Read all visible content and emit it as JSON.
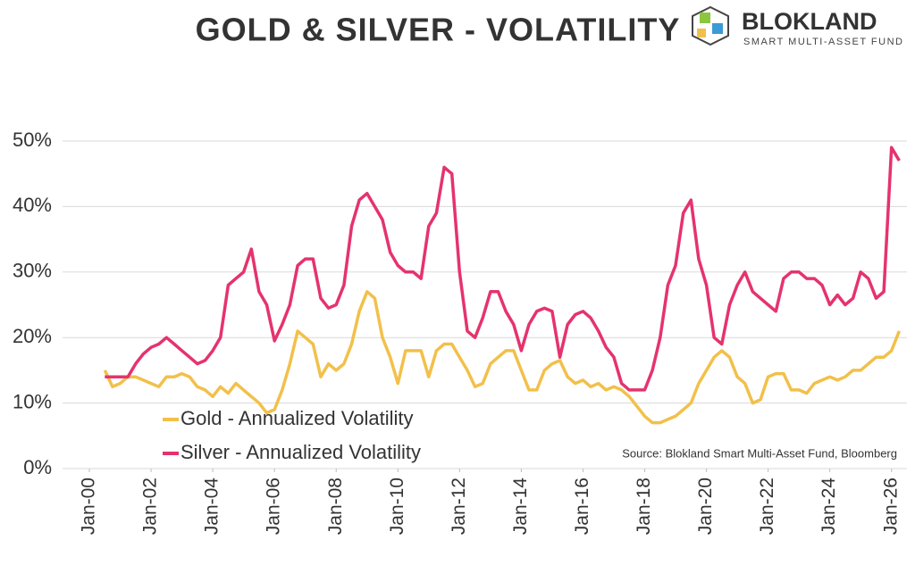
{
  "chart_data": {
    "type": "line",
    "title": "GOLD & SILVER - VOLATILITY",
    "source": "Source: Blokland Smart Multi-Asset Fund, Bloomberg",
    "logo": {
      "name": "BLOKLAND",
      "tagline": "SMART MULTI-ASSET FUND"
    },
    "x": [
      "2000-07",
      "2000-10",
      "2001-01",
      "2001-04",
      "2001-07",
      "2001-10",
      "2002-01",
      "2002-04",
      "2002-07",
      "2002-10",
      "2003-01",
      "2003-04",
      "2003-07",
      "2003-10",
      "2004-01",
      "2004-04",
      "2004-07",
      "2004-10",
      "2005-01",
      "2005-04",
      "2005-07",
      "2005-10",
      "2006-01",
      "2006-04",
      "2006-07",
      "2006-10",
      "2007-01",
      "2007-04",
      "2007-07",
      "2007-10",
      "2008-01",
      "2008-04",
      "2008-07",
      "2008-10",
      "2009-01",
      "2009-04",
      "2009-07",
      "2009-10",
      "2010-01",
      "2010-04",
      "2010-07",
      "2010-10",
      "2011-01",
      "2011-04",
      "2011-07",
      "2011-10",
      "2012-01",
      "2012-04",
      "2012-07",
      "2012-10",
      "2013-01",
      "2013-04",
      "2013-07",
      "2013-10",
      "2014-01",
      "2014-04",
      "2014-07",
      "2014-10",
      "2015-01",
      "2015-04",
      "2015-07",
      "2015-10",
      "2016-01",
      "2016-04",
      "2016-07",
      "2016-10",
      "2017-01",
      "2017-04",
      "2017-07",
      "2017-10",
      "2018-01",
      "2018-04",
      "2018-07",
      "2018-10",
      "2019-01",
      "2019-04",
      "2019-07",
      "2019-10",
      "2020-01",
      "2020-04",
      "2020-07",
      "2020-10",
      "2021-01",
      "2021-04",
      "2021-07",
      "2021-10",
      "2022-01",
      "2022-04",
      "2022-07",
      "2022-10",
      "2023-01",
      "2023-04",
      "2023-07",
      "2023-10",
      "2024-01",
      "2024-04",
      "2024-07",
      "2024-10",
      "2025-01",
      "2025-04",
      "2025-07",
      "2025-10",
      "2026-01",
      "2026-04"
    ],
    "series": [
      {
        "name": "Gold - Annualized Volatility",
        "color": "#f2c04a",
        "values": [
          15,
          12.5,
          13,
          14,
          14,
          13.5,
          13,
          12.5,
          14,
          14,
          14.5,
          14,
          12.5,
          12,
          11,
          12.5,
          11.5,
          13,
          12,
          11,
          10,
          8.5,
          9,
          12,
          16,
          21,
          20,
          19,
          14,
          16,
          15,
          16,
          19,
          24,
          27,
          26,
          20,
          17,
          13,
          18,
          18,
          18,
          14,
          18,
          19,
          19,
          17,
          15,
          12.5,
          13,
          16,
          17,
          18,
          18,
          15,
          12,
          12,
          15,
          16,
          16.5,
          14,
          13,
          13.5,
          12.5,
          13,
          12,
          12.5,
          12,
          11,
          9.5,
          8,
          7,
          7,
          7.5,
          8,
          9,
          10,
          13,
          15,
          17,
          18,
          17,
          14,
          13,
          10,
          10.5,
          14,
          14.5,
          14.5,
          12,
          12,
          11.5,
          13,
          13.5,
          14,
          13.5,
          14,
          15,
          15,
          16,
          17,
          17,
          18,
          21
        ]
      },
      {
        "name": "Silver - Annualized Volatility",
        "color": "#e5336d",
        "values": [
          14,
          14,
          14,
          14,
          16,
          17.5,
          18.5,
          19,
          20,
          19,
          18,
          17,
          16,
          16.5,
          18,
          20,
          28,
          29,
          30,
          33.5,
          27,
          25,
          19.5,
          22,
          25,
          31,
          32,
          32,
          26,
          24.5,
          25,
          28,
          37,
          41,
          42,
          40,
          38,
          33,
          31,
          30,
          30,
          29,
          37,
          39,
          46,
          45,
          30,
          21,
          20,
          23,
          27,
          27,
          24,
          22,
          18,
          22,
          24,
          24.5,
          24,
          17,
          22,
          23.5,
          24,
          23,
          21,
          18.5,
          17,
          13,
          12,
          12,
          12,
          15,
          20,
          28,
          31,
          39,
          41,
          32,
          28,
          20,
          19,
          25,
          28,
          30,
          27,
          26,
          25,
          24,
          29,
          30,
          30,
          29,
          29,
          28,
          25,
          26.5,
          25,
          26,
          30,
          29,
          26,
          27,
          49,
          47
        ]
      }
    ],
    "xlim": [
      "2000-01",
      "2026-07"
    ],
    "xticks": [
      {
        "value": "2000-01",
        "label": "Jan-00"
      },
      {
        "value": "2002-01",
        "label": "Jan-02"
      },
      {
        "value": "2004-01",
        "label": "Jan-04"
      },
      {
        "value": "2006-01",
        "label": "Jan-06"
      },
      {
        "value": "2008-01",
        "label": "Jan-08"
      },
      {
        "value": "2010-01",
        "label": "Jan-10"
      },
      {
        "value": "2012-01",
        "label": "Jan-12"
      },
      {
        "value": "2014-01",
        "label": "Jan-14"
      },
      {
        "value": "2016-01",
        "label": "Jan-16"
      },
      {
        "value": "2018-01",
        "label": "Jan-18"
      },
      {
        "value": "2020-01",
        "label": "Jan-20"
      },
      {
        "value": "2022-01",
        "label": "Jan-22"
      },
      {
        "value": "2024-01",
        "label": "Jan-24"
      },
      {
        "value": "2026-01",
        "label": "Jan-26"
      }
    ],
    "ylim": [
      0,
      50
    ],
    "yticks": [
      {
        "value": 0,
        "label": "0%"
      },
      {
        "value": 10,
        "label": "10%"
      },
      {
        "value": 20,
        "label": "20%"
      },
      {
        "value": 30,
        "label": "30%"
      },
      {
        "value": 40,
        "label": "40%"
      },
      {
        "value": 50,
        "label": "50%"
      }
    ],
    "grid": true
  }
}
